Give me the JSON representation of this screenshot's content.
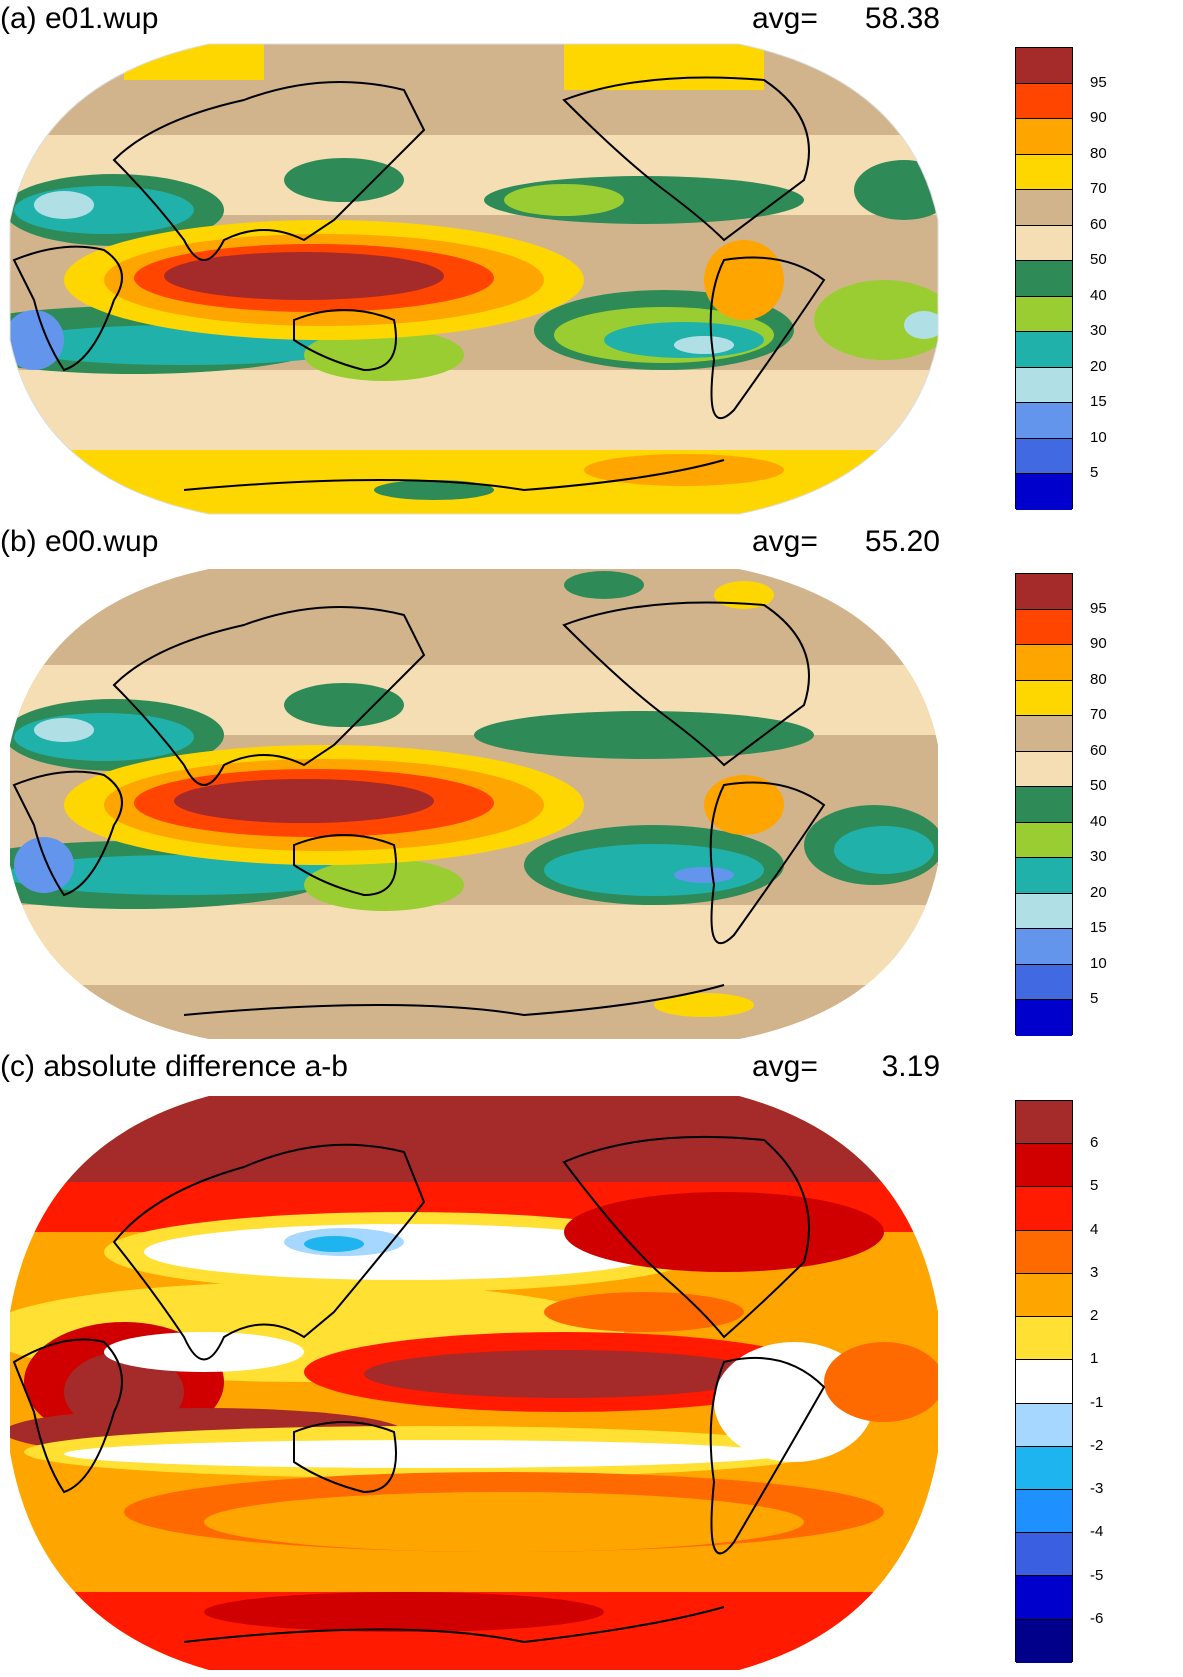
{
  "panels": [
    {
      "title": "(a) e01.wup",
      "avg_label": "avg=",
      "avg_value": "58.38",
      "colorbar": {
        "colors": [
          "#A52A2A",
          "#FF4500",
          "#FFA500",
          "#FFD700",
          "#D2B48C",
          "#F5DEB3",
          "#2E8B57",
          "#9ACD32",
          "#20B2AA",
          "#B0E0E6",
          "#6495ED",
          "#4169E1",
          "#0000CD"
        ],
        "labels": [
          "95",
          "90",
          "80",
          "70",
          "60",
          "50",
          "40",
          "30",
          "20",
          "15",
          "10",
          "5"
        ]
      }
    },
    {
      "title": "(b) e00.wup",
      "avg_label": "avg=",
      "avg_value": "55.20",
      "colorbar": {
        "colors": [
          "#A52A2A",
          "#FF4500",
          "#FFA500",
          "#FFD700",
          "#D2B48C",
          "#F5DEB3",
          "#2E8B57",
          "#9ACD32",
          "#20B2AA",
          "#B0E0E6",
          "#6495ED",
          "#4169E1",
          "#0000CD"
        ],
        "labels": [
          "95",
          "90",
          "80",
          "70",
          "60",
          "50",
          "40",
          "30",
          "20",
          "15",
          "10",
          "5"
        ]
      }
    },
    {
      "title": "(c) absolute difference a-b",
      "avg_label": "avg=",
      "avg_value": "3.19",
      "colorbar": {
        "colors": [
          "#A52A2A",
          "#D00000",
          "#FF1A00",
          "#FF6A00",
          "#FFA500",
          "#FFE033",
          "#FFFFFF",
          "#A6D8FF",
          "#1EB4F0",
          "#1E90FF",
          "#3A5FE0",
          "#0000CD",
          "#00008B"
        ],
        "labels": [
          "6",
          "5",
          "4",
          "3",
          "2",
          "1",
          "-1",
          "-2",
          "-3",
          "-4",
          "-5",
          "-6"
        ]
      }
    }
  ]
}
